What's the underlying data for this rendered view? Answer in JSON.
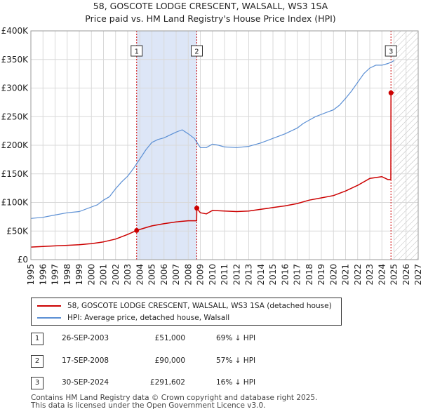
{
  "title_line1": "58, GOSCOTE LODGE CRESCENT, WALSALL, WS3 1SA",
  "title_line2": "Price paid vs. HM Land Registry's House Price Index (HPI)",
  "colors": {
    "red": "#cc0000",
    "blue": "#5b8fd4",
    "grid": "#d9d9d9",
    "shade": "#dde6f7"
  },
  "legend": {
    "red_label": "58, GOSCOTE LODGE CRESCENT, WALSALL, WS3 1SA (detached house)",
    "blue_label": "HPI: Average price, detached house, Walsall"
  },
  "sales": [
    {
      "num": "1",
      "date": "26-SEP-2003",
      "price": "£51,000",
      "hpi": "69% ↓ HPI"
    },
    {
      "num": "2",
      "date": "17-SEP-2008",
      "price": "£90,000",
      "hpi": "57% ↓ HPI"
    },
    {
      "num": "3",
      "date": "30-SEP-2024",
      "price": "£291,602",
      "hpi": "16% ↓ HPI"
    }
  ],
  "footer_line1": "Contains HM Land Registry data © Crown copyright and database right 2025.",
  "footer_line2": "This data is licensed under the Open Government Licence v3.0.",
  "chart_data": {
    "type": "line",
    "title": "58, GOSCOTE LODGE CRESCENT, WALSALL, WS3 1SA — Price paid vs. HM Land Registry's House Price Index (HPI)",
    "xlabel": "",
    "ylabel": "",
    "xlim": [
      1995,
      2027
    ],
    "ylim": [
      0,
      400000
    ],
    "x_ticks": [
      "1995",
      "1996",
      "1997",
      "1998",
      "1999",
      "2000",
      "2001",
      "2002",
      "2003",
      "2004",
      "2005",
      "2006",
      "2007",
      "2008",
      "2009",
      "2010",
      "2011",
      "2012",
      "2013",
      "2014",
      "2015",
      "2016",
      "2017",
      "2018",
      "2019",
      "2020",
      "2021",
      "2022",
      "2023",
      "2024",
      "2025",
      "2026",
      "2027"
    ],
    "y_ticks": [
      {
        "value": 0,
        "label": "£0"
      },
      {
        "value": 50000,
        "label": "£50K"
      },
      {
        "value": 100000,
        "label": "£100K"
      },
      {
        "value": 150000,
        "label": "£150K"
      },
      {
        "value": 200000,
        "label": "£200K"
      },
      {
        "value": 250000,
        "label": "£250K"
      },
      {
        "value": 300000,
        "label": "£300K"
      },
      {
        "value": 350000,
        "label": "£350K"
      },
      {
        "value": 400000,
        "label": "£400K"
      }
    ],
    "shaded_period": [
      2003.74,
      2008.71
    ],
    "forecast_start": 2025.0,
    "series": [
      {
        "name": "HPI: Average price, detached house, Walsall",
        "color": "#5b8fd4",
        "points": [
          [
            1995.0,
            72000
          ],
          [
            1996.0,
            74000
          ],
          [
            1997.0,
            78000
          ],
          [
            1998.0,
            82000
          ],
          [
            1999.0,
            84000
          ],
          [
            2000.0,
            92000
          ],
          [
            2000.5,
            96000
          ],
          [
            2001.0,
            104000
          ],
          [
            2001.5,
            110000
          ],
          [
            2002.0,
            124000
          ],
          [
            2002.5,
            136000
          ],
          [
            2003.0,
            146000
          ],
          [
            2003.5,
            160000
          ],
          [
            2004.0,
            176000
          ],
          [
            2004.5,
            192000
          ],
          [
            2005.0,
            205000
          ],
          [
            2005.5,
            210000
          ],
          [
            2006.0,
            213000
          ],
          [
            2006.5,
            218000
          ],
          [
            2007.0,
            223000
          ],
          [
            2007.5,
            227000
          ],
          [
            2008.0,
            220000
          ],
          [
            2008.5,
            212000
          ],
          [
            2009.0,
            196000
          ],
          [
            2009.5,
            196000
          ],
          [
            2010.0,
            202000
          ],
          [
            2010.5,
            200000
          ],
          [
            2011.0,
            197000
          ],
          [
            2012.0,
            196000
          ],
          [
            2013.0,
            198000
          ],
          [
            2014.0,
            204000
          ],
          [
            2015.0,
            212000
          ],
          [
            2016.0,
            220000
          ],
          [
            2017.0,
            230000
          ],
          [
            2017.5,
            238000
          ],
          [
            2018.0,
            244000
          ],
          [
            2018.5,
            250000
          ],
          [
            2019.0,
            254000
          ],
          [
            2019.5,
            258000
          ],
          [
            2020.0,
            262000
          ],
          [
            2020.5,
            270000
          ],
          [
            2021.0,
            282000
          ],
          [
            2021.5,
            295000
          ],
          [
            2022.0,
            310000
          ],
          [
            2022.5,
            325000
          ],
          [
            2023.0,
            335000
          ],
          [
            2023.5,
            340000
          ],
          [
            2024.0,
            340000
          ],
          [
            2024.5,
            343000
          ],
          [
            2024.75,
            345000
          ],
          [
            2025.0,
            348000
          ]
        ]
      },
      {
        "name": "58, GOSCOTE LODGE CRESCENT, WALSALL, WS3 1SA (detached house)",
        "color": "#cc0000",
        "points": [
          [
            1995.0,
            22000
          ],
          [
            1996.0,
            23000
          ],
          [
            1997.0,
            24000
          ],
          [
            1998.0,
            25000
          ],
          [
            1999.0,
            26000
          ],
          [
            2000.0,
            28000
          ],
          [
            2001.0,
            31000
          ],
          [
            2002.0,
            36000
          ],
          [
            2003.0,
            44000
          ],
          [
            2003.74,
            51000
          ],
          [
            2004.5,
            56000
          ],
          [
            2005.0,
            59000
          ],
          [
            2006.0,
            63000
          ],
          [
            2007.0,
            66000
          ],
          [
            2008.0,
            68000
          ],
          [
            2008.7,
            68000
          ],
          [
            2008.71,
            90000
          ],
          [
            2009.0,
            82000
          ],
          [
            2009.5,
            80000
          ],
          [
            2010.0,
            86000
          ],
          [
            2011.0,
            85000
          ],
          [
            2012.0,
            84000
          ],
          [
            2013.0,
            85000
          ],
          [
            2014.0,
            88000
          ],
          [
            2015.0,
            91000
          ],
          [
            2016.0,
            94000
          ],
          [
            2017.0,
            98000
          ],
          [
            2018.0,
            104000
          ],
          [
            2019.0,
            108000
          ],
          [
            2020.0,
            112000
          ],
          [
            2021.0,
            120000
          ],
          [
            2022.0,
            130000
          ],
          [
            2023.0,
            142000
          ],
          [
            2024.0,
            145000
          ],
          [
            2024.5,
            140000
          ],
          [
            2024.74,
            140000
          ],
          [
            2024.75,
            291602
          ],
          [
            2025.0,
            292000
          ]
        ]
      }
    ],
    "sale_markers": [
      {
        "label": "1",
        "x": 2003.74,
        "value": 51000
      },
      {
        "label": "2",
        "x": 2008.71,
        "value": 90000
      },
      {
        "label": "3",
        "x": 2024.75,
        "value": 291602
      }
    ]
  }
}
